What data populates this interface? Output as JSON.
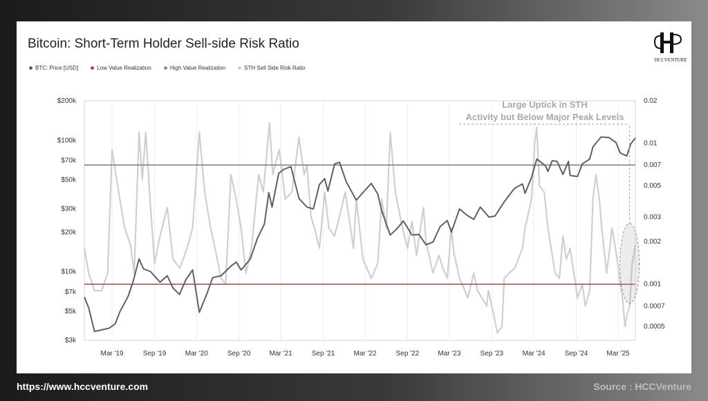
{
  "footer": {
    "url": "https://www.hccventure.com",
    "source": "Source : HCCVenture"
  },
  "logo": {
    "text": "HCCVENTURE",
    "glyph": "H"
  },
  "colors": {
    "btc": "#5f5f5f",
    "low": "#9c4a45",
    "high": "#8e8e8e",
    "sth": "#cfcfcf"
  },
  "chart_data": {
    "type": "line",
    "title": "Bitcoin: Short-Term Holder Sell-side Risk Ratio",
    "x_ticks": [
      "Mar '19",
      "Sep '19",
      "Mar '20",
      "Sep '20",
      "Mar '21",
      "Sep '21",
      "Mar '22",
      "Sep '22",
      "Mar '23",
      "Sep '23",
      "Mar '24",
      "Sep '24",
      "Mar '25"
    ],
    "y_left": {
      "label": "",
      "scale": "log",
      "range": [
        3000,
        200000
      ],
      "ticks": [
        "$200k",
        "$100k",
        "$70k",
        "$50k",
        "$30k",
        "$20k",
        "$10k",
        "$7k",
        "$5k",
        "$3k"
      ],
      "tick_values": [
        200000,
        100000,
        70000,
        50000,
        30000,
        20000,
        10000,
        7000,
        5000,
        3000
      ]
    },
    "y_right": {
      "label": "",
      "scale": "log",
      "range": [
        0.0004,
        0.02
      ],
      "ticks": [
        "0.02",
        "0.01",
        "0.007",
        "0.005",
        "0.003",
        "0.002",
        "0.001",
        "0.0007",
        "0.0005"
      ],
      "tick_values": [
        0.02,
        0.01,
        0.007,
        0.005,
        0.003,
        0.002,
        0.001,
        0.0007,
        0.0005
      ]
    },
    "x_range": [
      "2018-11-01",
      "2025-05-15"
    ],
    "legend": [
      {
        "name": "BTC: Price [USD]",
        "color_key": "btc"
      },
      {
        "name": "Low Value Realization",
        "color_key": "low"
      },
      {
        "name": "High Value Realization",
        "color_key": "high"
      },
      {
        "name": "STH Sell Side Risk Ratio",
        "color_key": "sth"
      }
    ],
    "reference_lines": [
      {
        "name": "High Value Realization",
        "axis": "right",
        "value": 0.007
      },
      {
        "name": "Low Value Realization",
        "axis": "right",
        "value": 0.001
      }
    ],
    "annotation": {
      "lines": [
        "Large Uptick in STH",
        "Activity but Below Major Peak Levels"
      ],
      "x": "2025-04-20",
      "value": 0.0014
    },
    "series": [
      {
        "name": "BTC: Price [USD]",
        "axis": "left",
        "points": [
          [
            "2018-11-01",
            6400
          ],
          [
            "2018-11-20",
            5300
          ],
          [
            "2018-12-15",
            3500
          ],
          [
            "2019-01-15",
            3600
          ],
          [
            "2019-02-15",
            3700
          ],
          [
            "2019-03-15",
            4000
          ],
          [
            "2019-04-05",
            5000
          ],
          [
            "2019-05-10",
            6500
          ],
          [
            "2019-06-01",
            8500
          ],
          [
            "2019-06-26",
            12500
          ],
          [
            "2019-07-15",
            10500
          ],
          [
            "2019-08-15",
            10000
          ],
          [
            "2019-09-25",
            8300
          ],
          [
            "2019-10-26",
            9300
          ],
          [
            "2019-11-20",
            7500
          ],
          [
            "2019-12-18",
            6700
          ],
          [
            "2020-01-15",
            8700
          ],
          [
            "2020-02-13",
            10300
          ],
          [
            "2020-03-13",
            4900
          ],
          [
            "2020-04-15",
            6800
          ],
          [
            "2020-05-10",
            9000
          ],
          [
            "2020-06-15",
            9300
          ],
          [
            "2020-07-28",
            11000
          ],
          [
            "2020-08-20",
            11800
          ],
          [
            "2020-09-10",
            10300
          ],
          [
            "2020-10-20",
            12500
          ],
          [
            "2020-11-20",
            18000
          ],
          [
            "2020-12-20",
            23000
          ],
          [
            "2021-01-08",
            40000
          ],
          [
            "2021-01-22",
            31000
          ],
          [
            "2021-02-20",
            56000
          ],
          [
            "2021-03-13",
            60000
          ],
          [
            "2021-04-14",
            63000
          ],
          [
            "2021-05-19",
            36000
          ],
          [
            "2021-06-22",
            31000
          ],
          [
            "2021-07-20",
            30000
          ],
          [
            "2021-08-15",
            46000
          ],
          [
            "2021-09-07",
            51000
          ],
          [
            "2021-09-21",
            41000
          ],
          [
            "2021-10-20",
            66000
          ],
          [
            "2021-11-10",
            68000
          ],
          [
            "2021-12-10",
            48000
          ],
          [
            "2022-01-22",
            35000
          ],
          [
            "2022-02-20",
            40000
          ],
          [
            "2022-03-28",
            47000
          ],
          [
            "2022-04-25",
            39000
          ],
          [
            "2022-05-12",
            29000
          ],
          [
            "2022-06-18",
            19000
          ],
          [
            "2022-07-15",
            21000
          ],
          [
            "2022-08-14",
            24300
          ],
          [
            "2022-09-20",
            19000
          ],
          [
            "2022-10-20",
            19200
          ],
          [
            "2022-11-20",
            16000
          ],
          [
            "2022-12-20",
            16800
          ],
          [
            "2023-01-20",
            22000
          ],
          [
            "2023-02-20",
            24500
          ],
          [
            "2023-03-10",
            20000
          ],
          [
            "2023-04-14",
            30000
          ],
          [
            "2023-05-15",
            27000
          ],
          [
            "2023-06-15",
            25000
          ],
          [
            "2023-07-13",
            31000
          ],
          [
            "2023-08-20",
            26000
          ],
          [
            "2023-09-15",
            26500
          ],
          [
            "2023-10-25",
            34000
          ],
          [
            "2023-12-08",
            43000
          ],
          [
            "2024-01-12",
            46500
          ],
          [
            "2024-01-23",
            39500
          ],
          [
            "2024-02-20",
            52000
          ],
          [
            "2024-03-14",
            72000
          ],
          [
            "2024-04-20",
            64000
          ],
          [
            "2024-05-01",
            58000
          ],
          [
            "2024-05-20",
            70000
          ],
          [
            "2024-06-10",
            69000
          ],
          [
            "2024-07-05",
            55000
          ],
          [
            "2024-07-29",
            69000
          ],
          [
            "2024-08-05",
            54000
          ],
          [
            "2024-09-06",
            53000
          ],
          [
            "2024-09-27",
            66000
          ],
          [
            "2024-10-29",
            72000
          ],
          [
            "2024-11-12",
            89000
          ],
          [
            "2024-12-17",
            106000
          ],
          [
            "2025-01-20",
            105000
          ],
          [
            "2025-02-20",
            96000
          ],
          [
            "2025-03-10",
            80000
          ],
          [
            "2025-04-08",
            76000
          ],
          [
            "2025-04-25",
            94000
          ],
          [
            "2025-05-15",
            104000
          ]
        ]
      },
      {
        "name": "STH Sell Side Risk Ratio",
        "axis": "right",
        "points": [
          [
            "2018-11-01",
            0.0018
          ],
          [
            "2018-11-20",
            0.0012
          ],
          [
            "2018-12-15",
            0.0009
          ],
          [
            "2019-01-15",
            0.0009
          ],
          [
            "2019-02-10",
            0.0012
          ],
          [
            "2019-03-01",
            0.009
          ],
          [
            "2019-03-25",
            0.005
          ],
          [
            "2019-04-25",
            0.0025
          ],
          [
            "2019-05-20",
            0.0019
          ],
          [
            "2019-06-05",
            0.0012
          ],
          [
            "2019-06-26",
            0.012
          ],
          [
            "2019-07-10",
            0.0055
          ],
          [
            "2019-07-25",
            0.012
          ],
          [
            "2019-08-15",
            0.0035
          ],
          [
            "2019-09-01",
            0.0014
          ],
          [
            "2019-09-25",
            0.0022
          ],
          [
            "2019-10-26",
            0.0035
          ],
          [
            "2019-11-20",
            0.0015
          ],
          [
            "2019-12-20",
            0.0013
          ],
          [
            "2020-01-20",
            0.0018
          ],
          [
            "2020-02-13",
            0.0025
          ],
          [
            "2020-03-13",
            0.012
          ],
          [
            "2020-04-05",
            0.0045
          ],
          [
            "2020-05-01",
            0.0025
          ],
          [
            "2020-05-20",
            0.0018
          ],
          [
            "2020-06-15",
            0.0011
          ],
          [
            "2020-07-05",
            0.001
          ],
          [
            "2020-07-28",
            0.006
          ],
          [
            "2020-08-20",
            0.004
          ],
          [
            "2020-09-10",
            0.0025
          ],
          [
            "2020-10-01",
            0.0012
          ],
          [
            "2020-10-25",
            0.0018
          ],
          [
            "2020-11-25",
            0.006
          ],
          [
            "2020-12-15",
            0.0045
          ],
          [
            "2021-01-11",
            0.014
          ],
          [
            "2021-01-25",
            0.006
          ],
          [
            "2021-02-22",
            0.009
          ],
          [
            "2021-03-20",
            0.004
          ],
          [
            "2021-04-18",
            0.0045
          ],
          [
            "2021-05-19",
            0.011
          ],
          [
            "2021-06-10",
            0.006
          ],
          [
            "2021-06-22",
            0.007
          ],
          [
            "2021-07-10",
            0.003
          ],
          [
            "2021-07-25",
            0.0025
          ],
          [
            "2021-08-15",
            0.0018
          ],
          [
            "2021-09-07",
            0.0045
          ],
          [
            "2021-09-25",
            0.0025
          ],
          [
            "2021-10-20",
            0.0022
          ],
          [
            "2021-11-20",
            0.0035
          ],
          [
            "2021-12-05",
            0.0045
          ],
          [
            "2022-01-10",
            0.0018
          ],
          [
            "2022-01-22",
            0.004
          ],
          [
            "2022-02-20",
            0.0015
          ],
          [
            "2022-03-28",
            0.0011
          ],
          [
            "2022-04-25",
            0.0014
          ],
          [
            "2022-05-12",
            0.004
          ],
          [
            "2022-06-01",
            0.0025
          ],
          [
            "2022-06-18",
            0.012
          ],
          [
            "2022-07-10",
            0.0045
          ],
          [
            "2022-08-10",
            0.0025
          ],
          [
            "2022-09-01",
            0.0018
          ],
          [
            "2022-09-20",
            0.0028
          ],
          [
            "2022-10-10",
            0.0016
          ],
          [
            "2022-11-09",
            0.0035
          ],
          [
            "2022-11-20",
            0.002
          ],
          [
            "2022-12-20",
            0.0012
          ],
          [
            "2023-01-15",
            0.0016
          ],
          [
            "2023-02-01",
            0.0013
          ],
          [
            "2023-02-20",
            0.0011
          ],
          [
            "2023-03-10",
            0.0025
          ],
          [
            "2023-03-20",
            0.0017
          ],
          [
            "2023-04-14",
            0.0011
          ],
          [
            "2023-05-01",
            0.00095
          ],
          [
            "2023-05-20",
            0.0008
          ],
          [
            "2023-06-15",
            0.0012
          ],
          [
            "2023-07-01",
            0.0009
          ],
          [
            "2023-07-20",
            0.0008
          ],
          [
            "2023-08-10",
            0.0007
          ],
          [
            "2023-08-17",
            0.0009
          ],
          [
            "2023-09-10",
            0.0006
          ],
          [
            "2023-09-25",
            0.00045
          ],
          [
            "2023-10-15",
            0.0005
          ],
          [
            "2023-10-25",
            0.0011
          ],
          [
            "2023-11-15",
            0.0012
          ],
          [
            "2023-12-10",
            0.0013
          ],
          [
            "2024-01-12",
            0.0018
          ],
          [
            "2024-01-23",
            0.0025
          ],
          [
            "2024-02-20",
            0.004
          ],
          [
            "2024-03-05",
            0.01
          ],
          [
            "2024-03-14",
            0.013
          ],
          [
            "2024-03-25",
            0.005
          ],
          [
            "2024-04-15",
            0.0045
          ],
          [
            "2024-05-01",
            0.0025
          ],
          [
            "2024-06-01",
            0.0012
          ],
          [
            "2024-06-20",
            0.0011
          ],
          [
            "2024-07-05",
            0.0022
          ],
          [
            "2024-07-20",
            0.0015
          ],
          [
            "2024-08-05",
            0.0018
          ],
          [
            "2024-08-25",
            0.0011
          ],
          [
            "2024-09-06",
            0.0008
          ],
          [
            "2024-09-27",
            0.001
          ],
          [
            "2024-10-10",
            0.0007
          ],
          [
            "2024-10-29",
            0.0009
          ],
          [
            "2024-11-12",
            0.004
          ],
          [
            "2024-11-25",
            0.006
          ],
          [
            "2024-12-10",
            0.004
          ],
          [
            "2024-12-20",
            0.0025
          ],
          [
            "2025-01-10",
            0.0012
          ],
          [
            "2025-01-20",
            0.0016
          ],
          [
            "2025-02-03",
            0.0025
          ],
          [
            "2025-02-25",
            0.0015
          ],
          [
            "2025-03-10",
            0.001
          ],
          [
            "2025-03-20",
            0.0008
          ],
          [
            "2025-03-31",
            0.0005
          ],
          [
            "2025-04-08",
            0.0006
          ],
          [
            "2025-04-20",
            0.0007
          ],
          [
            "2025-05-01",
            0.0014
          ],
          [
            "2025-05-15",
            0.0019
          ]
        ]
      }
    ]
  }
}
